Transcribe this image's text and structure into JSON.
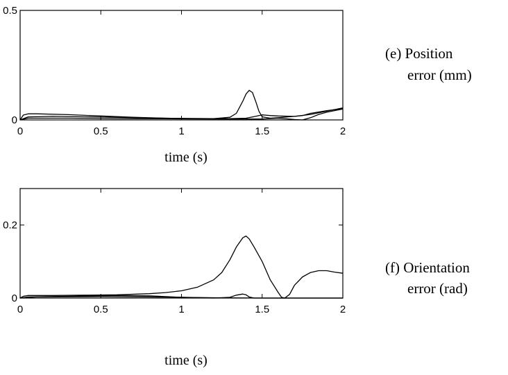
{
  "chart_data": [
    {
      "type": "line",
      "caption_lines": [
        "(e) Position",
        "error (mm)"
      ],
      "xlabel": "time (s)",
      "ylabel": "",
      "xlim": [
        0,
        2
      ],
      "ylim": [
        0,
        0.5
      ],
      "xticks": [
        0,
        0.5,
        1,
        1.5,
        2
      ],
      "xtick_labels": [
        "0",
        "0.5",
        "1",
        "1.5",
        "2"
      ],
      "yticks": [
        0,
        0.5
      ],
      "ytick_labels": [
        "0",
        "0.5"
      ],
      "grid": false,
      "series": [
        {
          "x": [
            0,
            0.02,
            0.05,
            0.1,
            0.3,
            0.5,
            0.7,
            0.9,
            1.1,
            1.2,
            1.3,
            1.34,
            1.38,
            1.4,
            1.42,
            1.44,
            1.46,
            1.48,
            1.5,
            1.55,
            1.6,
            1.7,
            1.8,
            1.9,
            2.0
          ],
          "y": [
            0,
            0.022,
            0.028,
            0.028,
            0.024,
            0.018,
            0.012,
            0.008,
            0.005,
            0.006,
            0.012,
            0.03,
            0.085,
            0.118,
            0.135,
            0.125,
            0.085,
            0.04,
            0.014,
            0.008,
            0.01,
            0.016,
            0.025,
            0.04,
            0.055
          ]
        },
        {
          "x": [
            0,
            0.05,
            0.2,
            0.5,
            0.8,
            1.0,
            1.2,
            1.3,
            1.4,
            1.45,
            1.5,
            1.55,
            1.6,
            1.7,
            1.75,
            1.8,
            1.9,
            2.0
          ],
          "y": [
            0,
            0.014,
            0.016,
            0.013,
            0.009,
            0.007,
            0.006,
            0.006,
            0.008,
            0.015,
            0.023,
            0.02,
            0.018,
            0.016,
            0.02,
            0.03,
            0.042,
            0.052
          ]
        },
        {
          "x": [
            0,
            0.05,
            0.3,
            0.6,
            0.9,
            1.2,
            1.4,
            1.5,
            1.6,
            1.65,
            1.7,
            1.75,
            1.8,
            1.85,
            1.9,
            2.0
          ],
          "y": [
            0,
            0.008,
            0.008,
            0.006,
            0.005,
            0.004,
            0.004,
            0.004,
            0.008,
            0.005,
            0.002,
            0.0,
            0.01,
            0.025,
            0.035,
            0.05
          ]
        }
      ]
    },
    {
      "type": "line",
      "caption_lines": [
        "(f) Orientation",
        "error (rad)"
      ],
      "xlabel": "time (s)",
      "ylabel": "",
      "xlim": [
        0,
        2
      ],
      "ylim": [
        0,
        0.3
      ],
      "xticks": [
        0,
        0.5,
        1,
        1.5,
        2
      ],
      "xtick_labels": [
        "0",
        "0.5",
        "1",
        "1.5",
        "2"
      ],
      "yticks": [
        0,
        0.2
      ],
      "ytick_labels": [
        "0",
        "0.2"
      ],
      "grid": false,
      "series": [
        {
          "x": [
            0,
            0.02,
            0.05,
            0.2,
            0.4,
            0.6,
            0.8,
            0.9,
            1.0,
            1.1,
            1.2,
            1.25,
            1.3,
            1.34,
            1.38,
            1.4,
            1.42,
            1.45,
            1.5,
            1.55,
            1.6,
            1.62,
            1.64,
            1.67,
            1.7,
            1.75,
            1.8,
            1.85,
            1.9,
            1.95,
            2.0
          ],
          "y": [
            0,
            0.005,
            0.007,
            0.007,
            0.008,
            0.009,
            0.012,
            0.015,
            0.02,
            0.03,
            0.05,
            0.07,
            0.105,
            0.14,
            0.165,
            0.17,
            0.162,
            0.14,
            0.1,
            0.05,
            0.015,
            0.002,
            0.0,
            0.01,
            0.035,
            0.058,
            0.07,
            0.075,
            0.075,
            0.071,
            0.068
          ]
        },
        {
          "x": [
            0,
            0.05,
            0.3,
            0.6,
            0.8,
            1.0,
            1.2,
            1.3,
            1.34,
            1.38,
            1.4,
            1.42,
            1.45,
            1.5,
            1.6,
            1.8,
            2.0
          ],
          "y": [
            0,
            0.003,
            0.005,
            0.007,
            0.006,
            0.002,
            0.0,
            0.002,
            0.008,
            0.011,
            0.009,
            0.003,
            0.0,
            0.0,
            0.0,
            0.0,
            0.0
          ]
        },
        {
          "x": [
            0,
            0.1,
            0.5,
            0.8,
            1.0,
            1.2,
            1.5,
            1.8,
            2.0
          ],
          "y": [
            0,
            0.003,
            0.004,
            0.003,
            0.002,
            0.001,
            0.0,
            0.0,
            0.0
          ]
        }
      ]
    }
  ]
}
